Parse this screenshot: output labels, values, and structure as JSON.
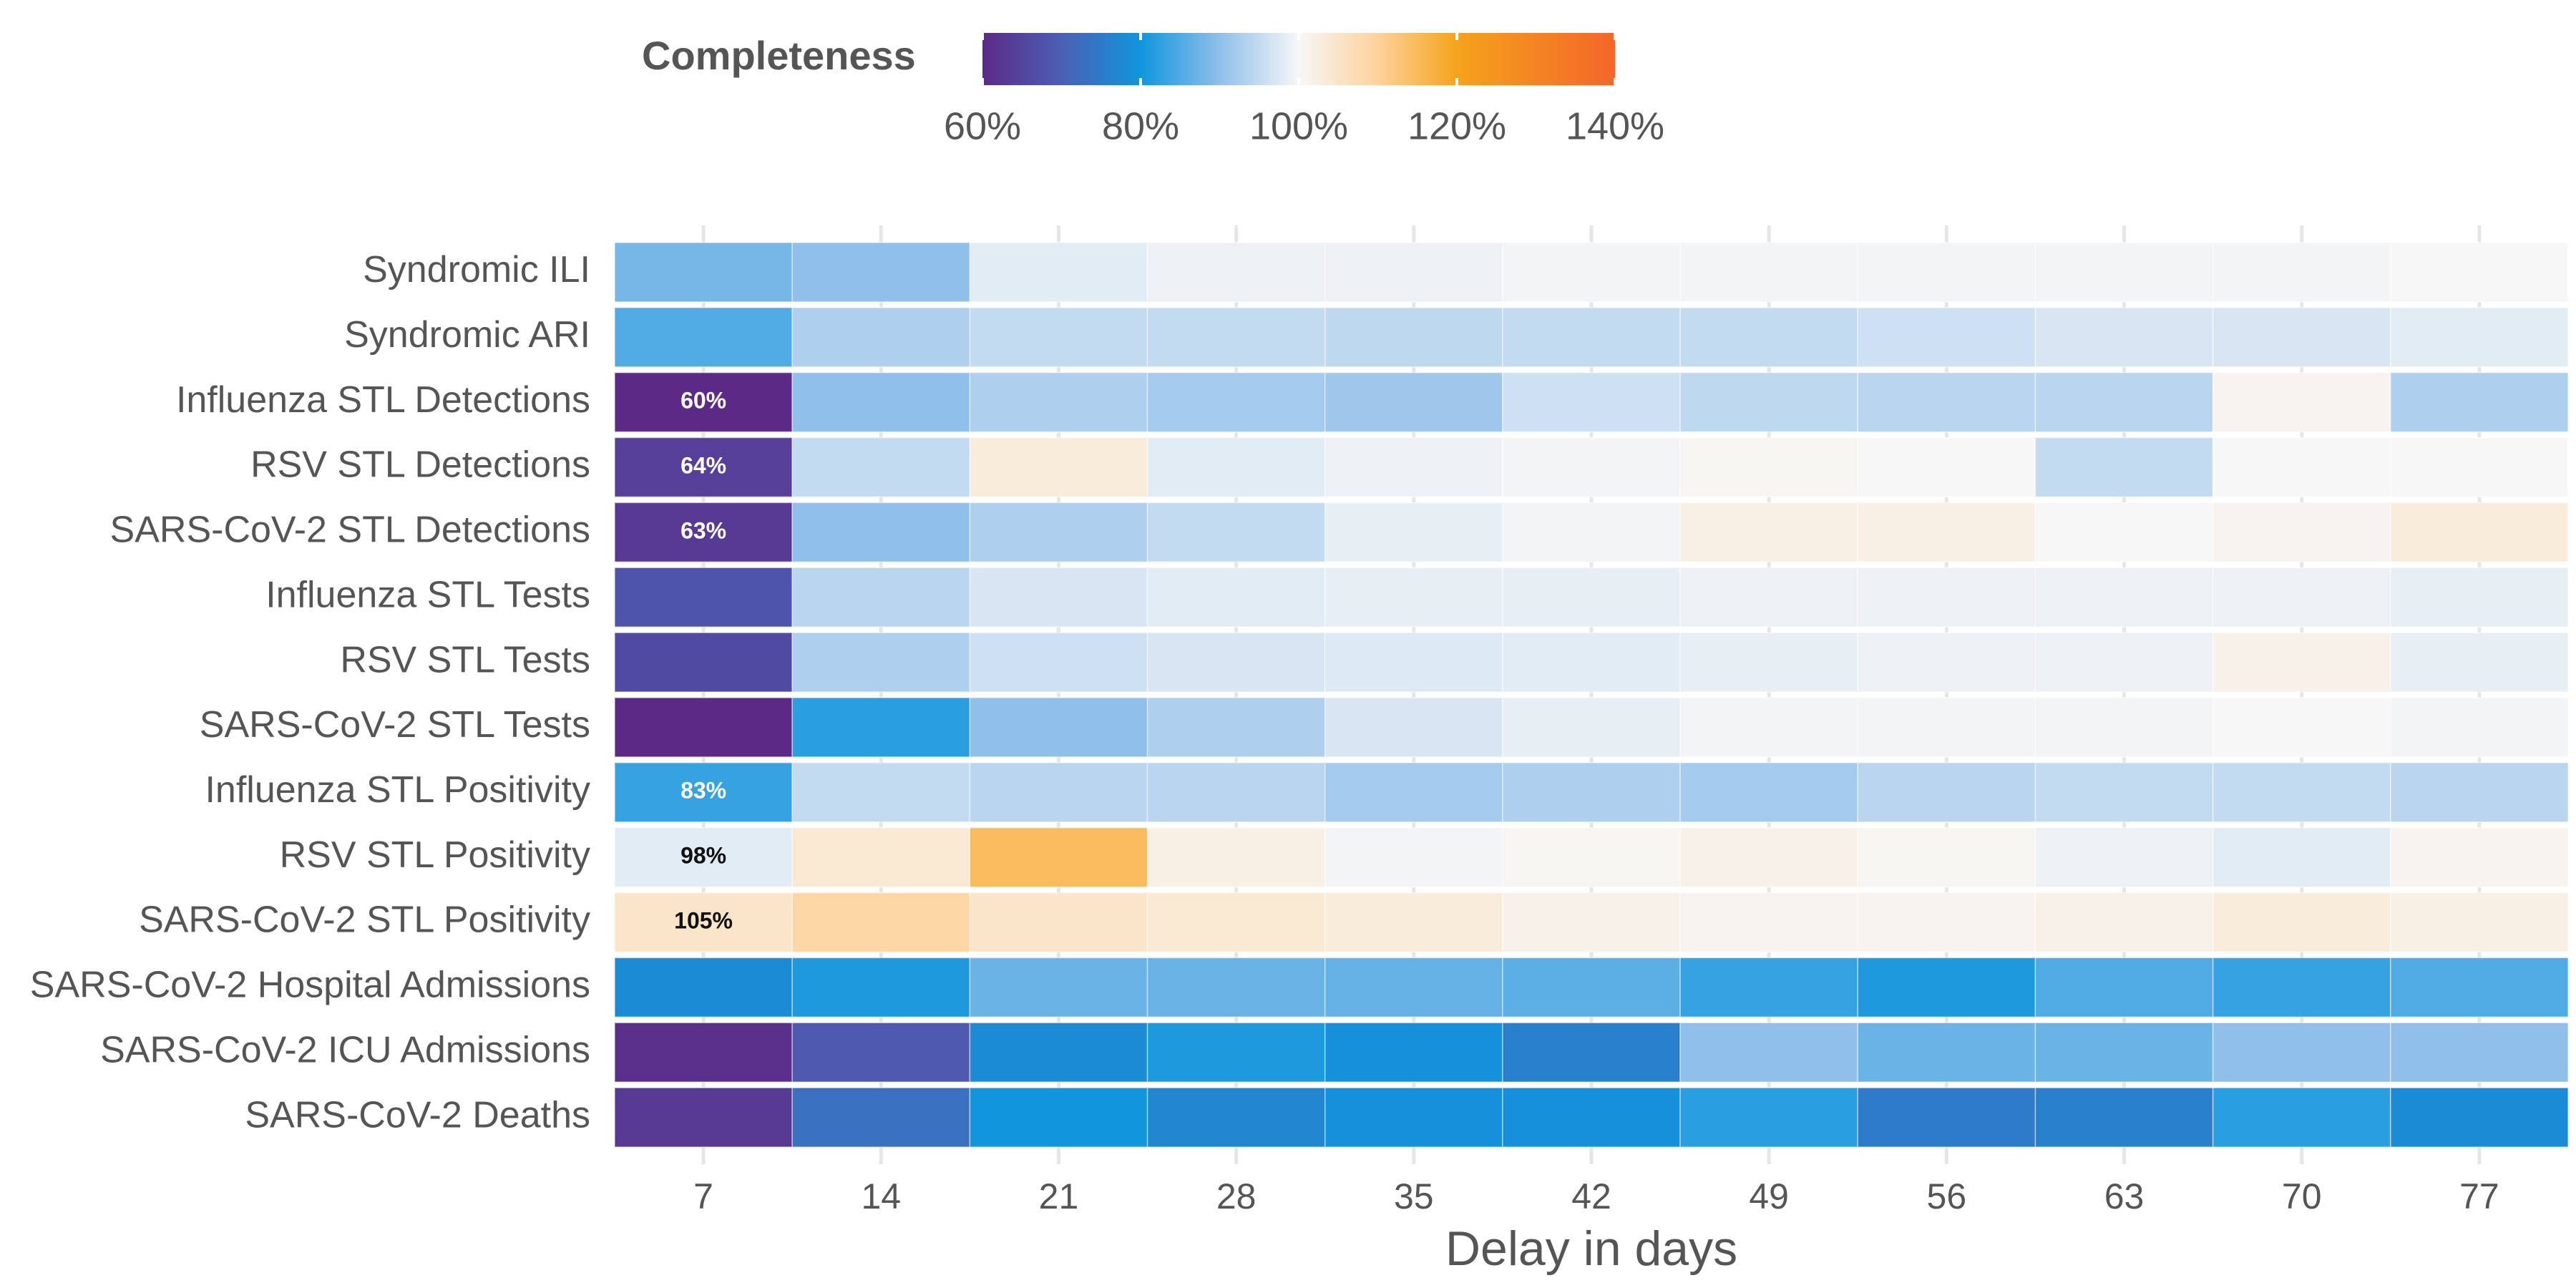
{
  "chart_data": {
    "type": "heatmap",
    "legend_title": "Completeness",
    "x_label": "Delay in days",
    "x": [
      7,
      14,
      21,
      28,
      35,
      42,
      49,
      56,
      63,
      70,
      77
    ],
    "xlim": [
      3.5,
      80.5
    ],
    "xticks": [
      7,
      14,
      21,
      28,
      35,
      42,
      49,
      56,
      63,
      70,
      77
    ],
    "categories": [
      "Syndromic ILI",
      "Syndromic ARI",
      "Influenza STL Detections",
      "RSV STL Detections",
      "SARS-CoV-2 STL Detections",
      "Influenza STL Tests",
      "RSV STL Tests",
      "SARS-CoV-2 STL Tests",
      "Influenza STL Positivity",
      "RSV STL Positivity",
      "SARS-CoV-2 STL Positivity",
      "SARS-CoV-2 Hospital Admissions",
      "SARS-CoV-2 ICU Admissions",
      "SARS-CoV-2 Deaths"
    ],
    "values": [
      [
        88,
        90,
        98,
        99,
        99,
        99.5,
        99.5,
        99.5,
        99.5,
        99.5,
        100
      ],
      [
        85,
        93,
        95,
        95,
        94.5,
        95,
        95,
        96,
        97,
        97,
        98
      ],
      [
        60,
        90,
        93,
        92,
        91.5,
        96,
        94.5,
        94,
        94,
        101,
        93
      ],
      [
        64,
        95,
        103,
        98,
        99,
        99.5,
        100.5,
        100,
        95,
        100,
        100
      ],
      [
        63,
        90,
        93,
        95,
        98.5,
        99.5,
        102,
        102,
        100,
        101,
        103
      ],
      [
        68,
        94,
        97,
        98,
        98.5,
        98.5,
        99,
        99,
        99,
        99,
        98.5
      ],
      [
        66,
        93,
        96,
        97,
        97.5,
        98,
        98.5,
        99,
        99,
        101.5,
        98.5
      ],
      [
        60,
        82,
        90,
        93,
        97,
        98.5,
        99.5,
        99.5,
        99.5,
        100,
        99.5
      ],
      [
        83,
        95,
        94,
        94,
        92,
        93,
        92,
        94,
        95,
        95,
        94
      ],
      [
        98,
        104,
        115,
        102,
        99.5,
        100.5,
        101.5,
        100.5,
        99,
        98,
        101
      ],
      [
        105,
        109,
        105,
        104,
        103,
        101.5,
        101,
        101,
        101.5,
        103,
        102
      ],
      [
        78,
        81,
        87,
        87,
        86.5,
        86,
        83,
        81,
        85,
        83,
        85
      ],
      [
        61,
        69,
        78,
        81,
        79,
        76,
        90,
        87,
        87,
        90,
        90
      ],
      [
        63,
        73,
        80,
        77,
        79,
        79,
        82,
        75,
        76,
        82,
        78
      ]
    ],
    "value_labels": [
      [
        null,
        null,
        null,
        null,
        null,
        null,
        null,
        null,
        null,
        null,
        null
      ],
      [
        null,
        null,
        null,
        null,
        null,
        null,
        null,
        null,
        null,
        null,
        null
      ],
      [
        "60%",
        null,
        null,
        null,
        null,
        null,
        null,
        null,
        null,
        null,
        null
      ],
      [
        "64%",
        null,
        null,
        null,
        null,
        null,
        null,
        null,
        null,
        null,
        null
      ],
      [
        "63%",
        null,
        null,
        null,
        null,
        null,
        null,
        null,
        null,
        null,
        null
      ],
      [
        null,
        null,
        null,
        null,
        null,
        null,
        null,
        null,
        null,
        null,
        null
      ],
      [
        null,
        null,
        null,
        null,
        null,
        null,
        null,
        null,
        null,
        null,
        null
      ],
      [
        null,
        null,
        null,
        null,
        null,
        null,
        null,
        null,
        null,
        null,
        null
      ],
      [
        "83%",
        null,
        null,
        null,
        null,
        null,
        null,
        null,
        null,
        null,
        null
      ],
      [
        "98%",
        null,
        null,
        null,
        null,
        null,
        null,
        null,
        null,
        null,
        null
      ],
      [
        "105%",
        null,
        null,
        null,
        null,
        null,
        null,
        null,
        null,
        null,
        null
      ],
      [
        null,
        null,
        null,
        null,
        null,
        null,
        null,
        null,
        null,
        null,
        null
      ],
      [
        null,
        null,
        null,
        null,
        null,
        null,
        null,
        null,
        null,
        null,
        null
      ],
      [
        null,
        null,
        null,
        null,
        null,
        null,
        null,
        null,
        null,
        null,
        null
      ]
    ],
    "colorscale": [
      [
        60,
        "#5b2a86"
      ],
      [
        70,
        "#4b5fb4"
      ],
      [
        80,
        "#1096dd"
      ],
      [
        90,
        "#8fbfea"
      ],
      [
        100,
        "#f7f7f7"
      ],
      [
        110,
        "#fdd29b"
      ],
      [
        120,
        "#f5a31c"
      ],
      [
        140,
        "#f4662a"
      ]
    ],
    "colorlim": [
      60,
      140
    ],
    "colorticks": [
      {
        "value": 60,
        "label": "60%"
      },
      {
        "value": 80,
        "label": "80%"
      },
      {
        "value": 100,
        "label": "100%"
      },
      {
        "value": 120,
        "label": "120%"
      },
      {
        "value": 140,
        "label": "140%"
      }
    ],
    "grid": true
  }
}
